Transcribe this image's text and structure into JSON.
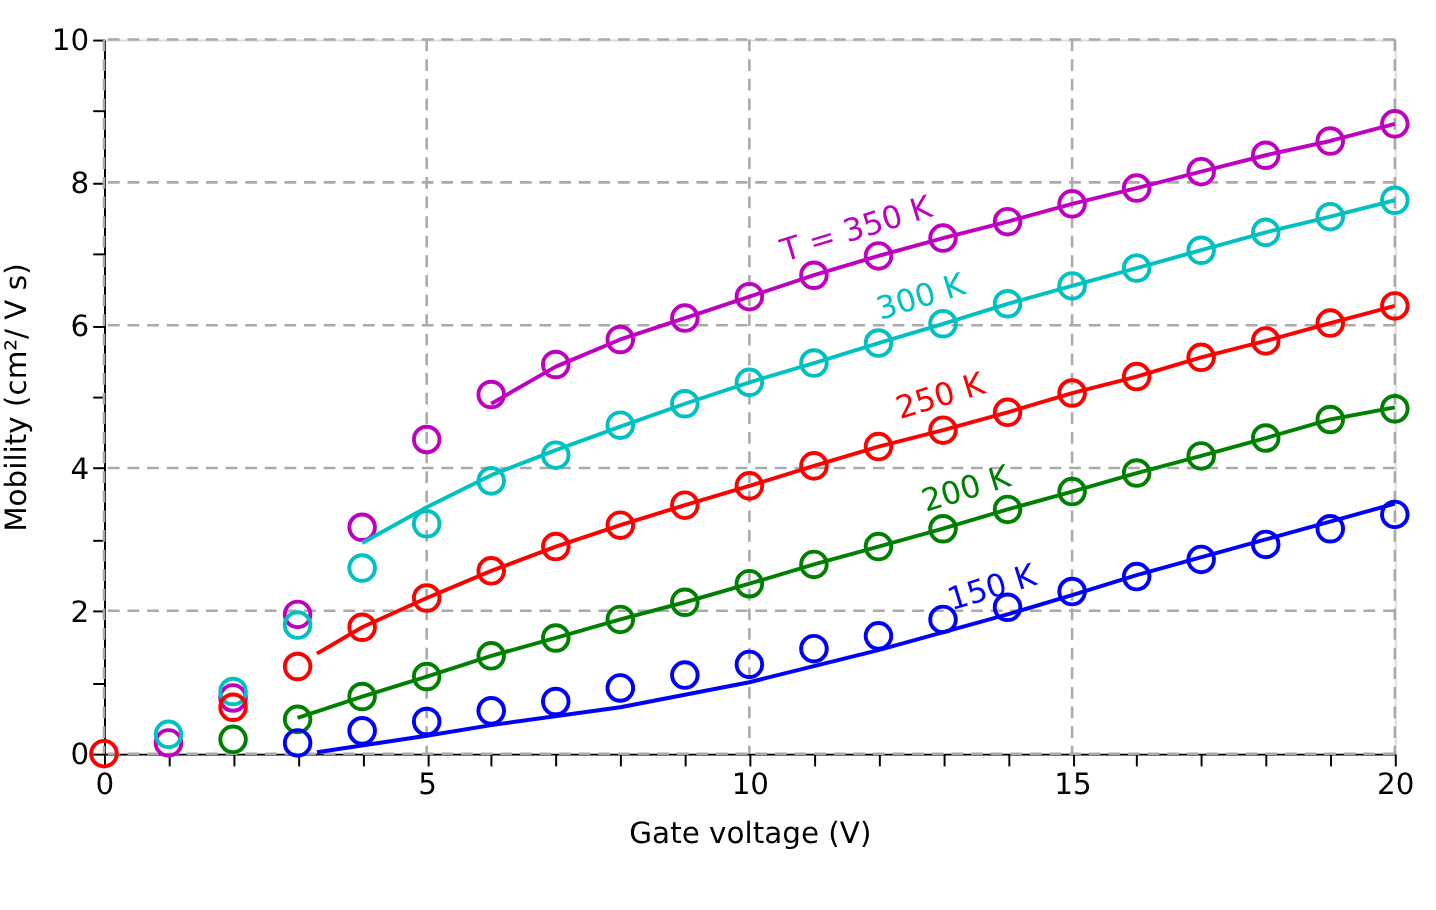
{
  "chart_data": {
    "type": "scatter",
    "xlabel": "Gate voltage (V)",
    "ylabel": "Mobility (cm²/ V s)",
    "xlim": [
      0,
      20
    ],
    "ylim": [
      0,
      10
    ],
    "xticks": [
      0,
      {
        "value": 1,
        "label": null
      },
      {
        "value": 2,
        "label": null
      },
      {
        "value": 3,
        "label": null
      },
      {
        "value": 4,
        "label": null
      },
      5,
      {
        "value": 6,
        "label": null
      },
      {
        "value": 7,
        "label": null
      },
      {
        "value": 8,
        "label": null
      },
      {
        "value": 9,
        "label": null
      },
      10,
      {
        "value": 11,
        "label": null
      },
      {
        "value": 12,
        "label": null
      },
      {
        "value": 13,
        "label": null
      },
      {
        "value": 14,
        "label": null
      },
      15,
      {
        "value": 16,
        "label": null
      },
      {
        "value": 17,
        "label": null
      },
      {
        "value": 18,
        "label": null
      },
      {
        "value": 19,
        "label": null
      },
      20
    ],
    "yticks": [
      0,
      {
        "value": 1,
        "label": null
      },
      2,
      {
        "value": 3,
        "label": null
      },
      4,
      {
        "value": 5,
        "label": null
      },
      6,
      {
        "value": 7,
        "label": null
      },
      8,
      {
        "value": 9,
        "label": null
      },
      10
    ],
    "grid": true,
    "marker": "circle",
    "series": [
      {
        "color": "#c000c0",
        "x": [
          1,
          2,
          3,
          4,
          5,
          6,
          7,
          8,
          9,
          10,
          11,
          12,
          13,
          14,
          15,
          16,
          17,
          18,
          19,
          20
        ],
        "values": [
          0.15,
          0.78,
          1.95,
          3.17,
          4.4,
          5.03,
          5.45,
          5.8,
          6.1,
          6.4,
          6.7,
          6.97,
          7.22,
          7.45,
          7.7,
          7.92,
          8.15,
          8.38,
          8.58,
          8.82
        ]
      },
      {
        "color": "#00c0c0",
        "x": [
          1,
          2,
          3,
          4,
          5,
          6,
          7,
          8,
          9,
          10,
          11,
          12,
          13,
          14,
          15,
          16,
          17,
          18,
          19,
          20
        ],
        "values": [
          0.27,
          0.87,
          1.8,
          2.6,
          3.22,
          3.82,
          4.18,
          4.6,
          4.9,
          5.2,
          5.47,
          5.75,
          6.02,
          6.3,
          6.55,
          6.8,
          7.05,
          7.3,
          7.52,
          7.75
        ]
      },
      {
        "color": "#ff0000",
        "x": [
          0,
          2,
          3,
          4,
          5,
          6,
          7,
          8,
          9,
          10,
          11,
          12,
          13,
          14,
          15,
          16,
          17,
          18,
          19,
          20
        ],
        "values": [
          0,
          0.65,
          1.22,
          1.77,
          2.18,
          2.56,
          2.9,
          3.2,
          3.48,
          3.75,
          4.03,
          4.3,
          4.53,
          4.78,
          5.05,
          5.28,
          5.55,
          5.78,
          6.03,
          6.27
        ]
      },
      {
        "color": "#008000",
        "x": [
          2,
          3,
          4,
          5,
          6,
          7,
          8,
          9,
          10,
          11,
          12,
          13,
          14,
          15,
          16,
          17,
          18,
          19,
          20
        ],
        "values": [
          0.2,
          0.48,
          0.8,
          1.08,
          1.37,
          1.62,
          1.88,
          2.12,
          2.38,
          2.65,
          2.9,
          3.15,
          3.42,
          3.67,
          3.93,
          4.17,
          4.42,
          4.68,
          4.83
        ]
      },
      {
        "color": "#0000ff",
        "x": [
          3,
          4,
          5,
          6,
          7,
          8,
          9,
          10,
          11,
          12,
          13,
          14,
          15,
          16,
          17,
          18,
          19,
          20
        ],
        "values": [
          0.15,
          0.32,
          0.45,
          0.6,
          0.73,
          0.92,
          1.1,
          1.25,
          1.47,
          1.65,
          1.88,
          2.05,
          2.27,
          2.48,
          2.72,
          2.93,
          3.15,
          3.35
        ]
      },
      {
        "type": "line",
        "marker": "none",
        "color": "#c000c0",
        "x": [
          6,
          7,
          8,
          9,
          10,
          11,
          12,
          13,
          14,
          15,
          16,
          17,
          18,
          19,
          20
        ],
        "values": [
          4.9,
          5.42,
          5.8,
          6.1,
          6.4,
          6.7,
          6.97,
          7.22,
          7.45,
          7.7,
          7.92,
          8.15,
          8.38,
          8.58,
          8.82
        ]
      },
      {
        "type": "line",
        "marker": "none",
        "color": "#00c0c0",
        "x": [
          4,
          5,
          6,
          7,
          8,
          9,
          10,
          11,
          12,
          13,
          14,
          15,
          16,
          17,
          18,
          19,
          20
        ],
        "values": [
          2.95,
          3.45,
          3.9,
          4.25,
          4.58,
          4.9,
          5.2,
          5.47,
          5.75,
          6.02,
          6.3,
          6.55,
          6.8,
          7.05,
          7.3,
          7.52,
          7.75
        ]
      },
      {
        "type": "line",
        "marker": "none",
        "color": "#ff0000",
        "x": [
          3.3,
          4,
          5,
          6,
          7,
          8,
          9,
          10,
          11,
          12,
          13,
          14,
          15,
          16,
          17,
          18,
          19,
          20
        ],
        "values": [
          1.4,
          1.77,
          2.18,
          2.56,
          2.9,
          3.2,
          3.48,
          3.75,
          4.03,
          4.3,
          4.53,
          4.78,
          5.05,
          5.28,
          5.55,
          5.78,
          6.03,
          6.27
        ]
      },
      {
        "type": "line",
        "marker": "none",
        "color": "#008000",
        "x": [
          3,
          4,
          5,
          6,
          7,
          8,
          9,
          10,
          11,
          12,
          13,
          14,
          15,
          16,
          17,
          18,
          19,
          20
        ],
        "values": [
          0.5,
          0.8,
          1.08,
          1.37,
          1.62,
          1.88,
          2.12,
          2.38,
          2.65,
          2.9,
          3.15,
          3.42,
          3.67,
          3.93,
          4.17,
          4.42,
          4.68,
          4.85
        ]
      },
      {
        "type": "line",
        "marker": "none",
        "color": "#0000ff",
        "x": [
          3.3,
          5,
          6,
          8,
          10,
          12,
          14,
          15,
          16,
          18,
          20
        ],
        "values": [
          0.02,
          0.25,
          0.4,
          0.65,
          1.0,
          1.45,
          1.95,
          2.22,
          2.5,
          3.0,
          3.5
        ]
      }
    ],
    "annotations": [
      {
        "text": "T = 350 K",
        "x": 11.8,
        "y": 6.92
      },
      {
        "text": "300 K",
        "x": 12.8,
        "y": 5.97
      },
      {
        "text": "250 K",
        "x": 13.1,
        "y": 4.58
      },
      {
        "text": "200 K",
        "x": 13.5,
        "y": 3.28
      },
      {
        "text": "150 K",
        "x": 13.9,
        "y": 1.9
      }
    ]
  }
}
